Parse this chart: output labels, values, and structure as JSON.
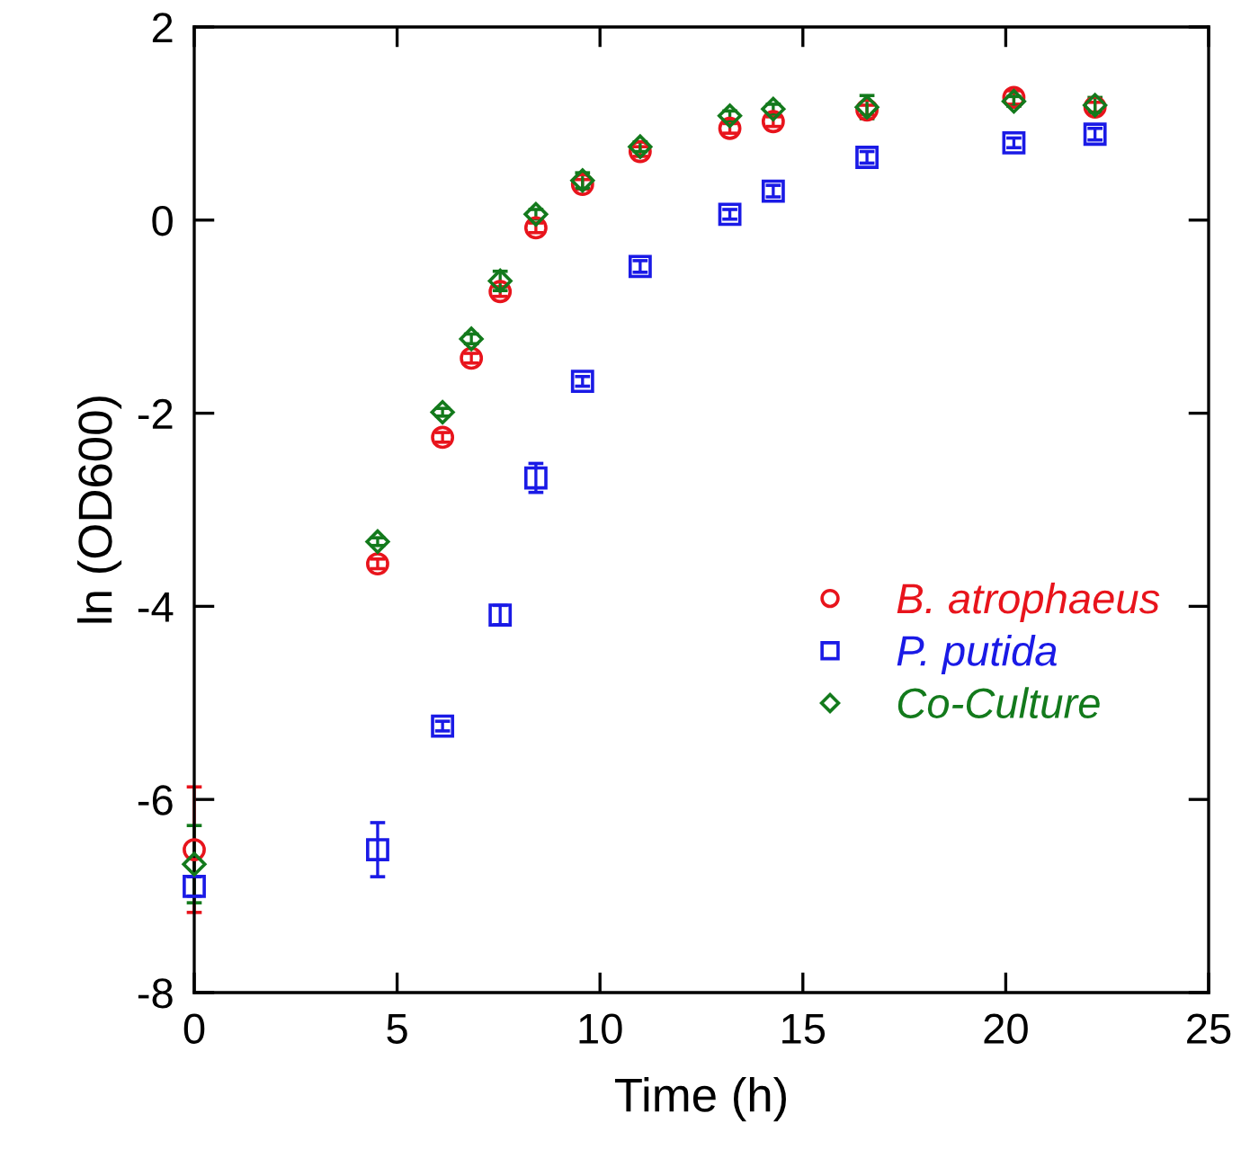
{
  "chart_data": {
    "type": "scatter",
    "xlabel": "Time (h)",
    "ylabel": "ln (OD600)",
    "xlim": [
      0,
      25
    ],
    "xticks": [
      0,
      5,
      10,
      15,
      20,
      25
    ],
    "ylim": [
      -8,
      2
    ],
    "yticks": [
      -8,
      -6,
      -4,
      -2,
      0,
      2
    ],
    "grid": false,
    "legend": "right",
    "series": [
      {
        "name": "B. atrophaeus",
        "color": "#e8141c",
        "marker": "circle",
        "x": [
          0,
          4.52,
          6.12,
          6.83,
          7.54,
          8.42,
          9.57,
          10.99,
          13.2,
          14.27,
          16.58,
          20.2,
          22.2
        ],
        "values": [
          -6.52,
          -3.56,
          -2.25,
          -1.43,
          -0.74,
          -0.08,
          0.37,
          0.71,
          0.95,
          1.02,
          1.14,
          1.27,
          1.17
        ],
        "errors": [
          0.65,
          0.05,
          0.05,
          0.05,
          0.05,
          0.05,
          0.05,
          0.05,
          0.05,
          0.05,
          0.05,
          0.07,
          0.05
        ]
      },
      {
        "name": "P. putida",
        "color": "#1a1ae6",
        "marker": "square",
        "x": [
          0,
          4.52,
          6.12,
          7.54,
          8.42,
          9.57,
          10.99,
          13.2,
          14.27,
          16.58,
          20.2,
          22.2
        ],
        "values": [
          -6.9,
          -6.52,
          -5.24,
          -4.09,
          -2.67,
          -1.67,
          -0.48,
          0.06,
          0.3,
          0.65,
          0.8,
          0.89
        ],
        "errors": [
          0.1,
          0.28,
          0.05,
          0.1,
          0.15,
          0.05,
          0.06,
          0.05,
          0.06,
          0.06,
          0.05,
          0.06
        ]
      },
      {
        "name": "Co-Culture",
        "color": "#137a1c",
        "marker": "diamond",
        "x": [
          0,
          4.52,
          6.12,
          6.83,
          7.54,
          8.42,
          9.57,
          10.99,
          13.2,
          14.27,
          16.58,
          20.2,
          22.2
        ],
        "values": [
          -6.67,
          -3.33,
          -1.99,
          -1.23,
          -0.63,
          0.06,
          0.41,
          0.76,
          1.08,
          1.15,
          1.17,
          1.23,
          1.19
        ],
        "errors": [
          0.4,
          0.04,
          0.04,
          0.05,
          0.1,
          0.05,
          0.08,
          0.05,
          0.05,
          0.05,
          0.12,
          0.05,
          0.08
        ]
      }
    ]
  }
}
